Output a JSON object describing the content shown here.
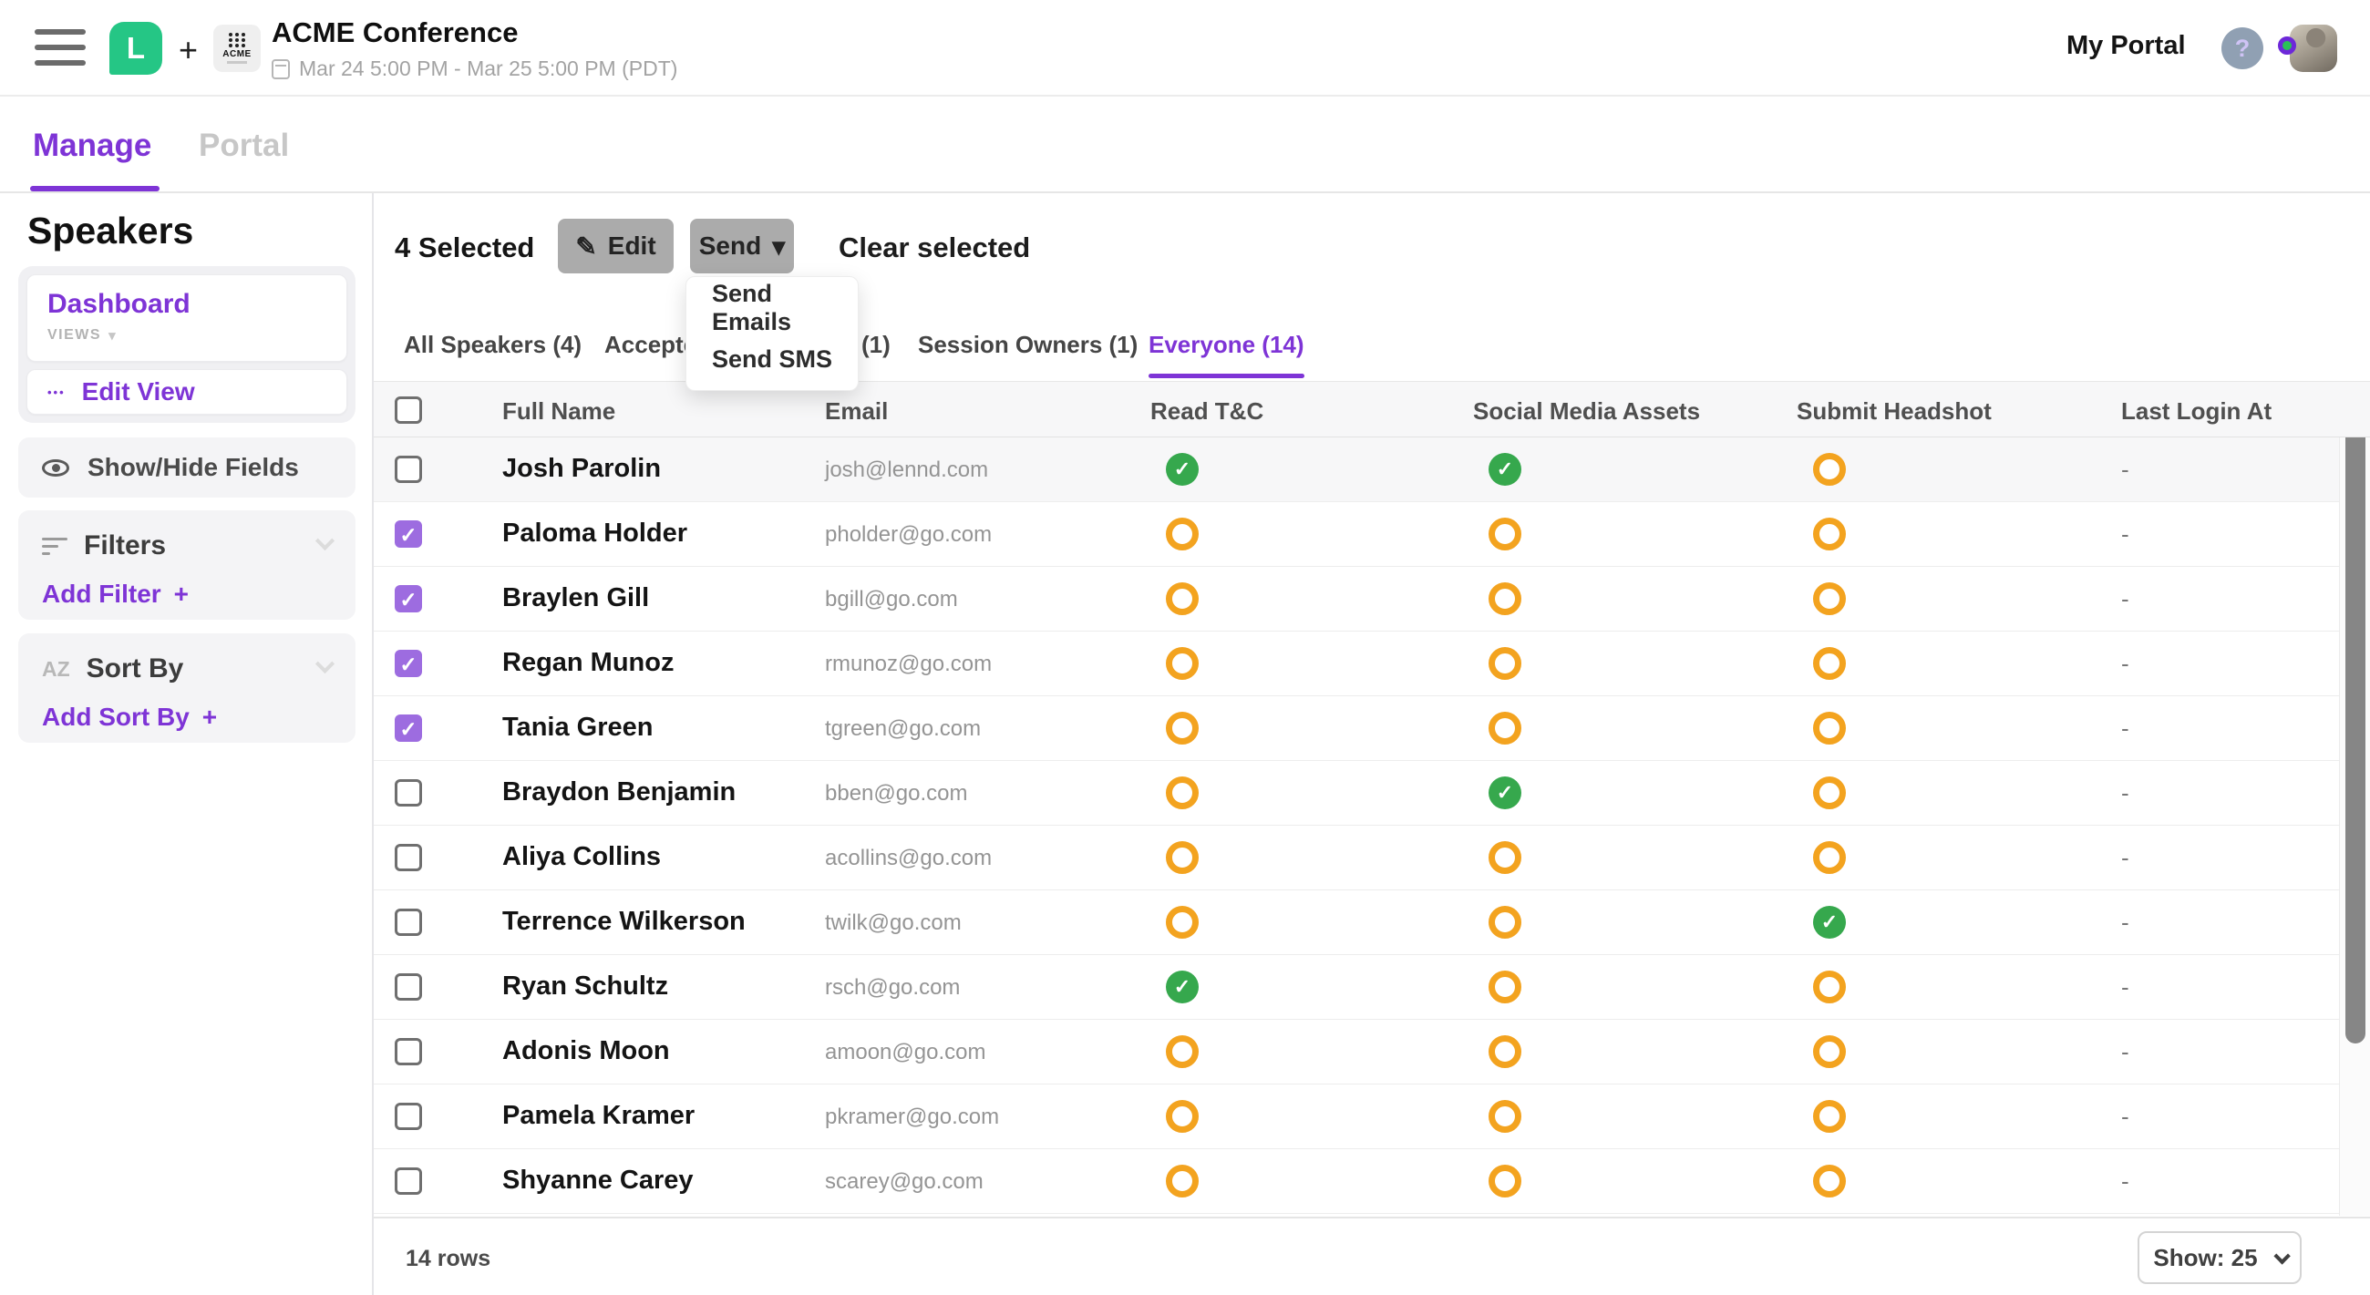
{
  "colors": {
    "accent_purple": "#7E34D6",
    "checkbox_purple": "#9D6CE0",
    "brand_green": "#25C685",
    "status_done_green": "#36A84D",
    "status_pending_orange": "#F3A31F",
    "button_gray": "#ABABAB"
  },
  "top_bar": {
    "logo_letter": "L",
    "plus": "+",
    "event_logo_text": "ACME",
    "event_title": "ACME Conference",
    "event_dates": "Mar 24 5:00 PM - Mar 25 5:00 PM (PDT)",
    "my_portal": "My Portal",
    "help": "?"
  },
  "primary_tabs": {
    "manage": "Manage",
    "portal": "Portal"
  },
  "sidebar": {
    "title": "Speakers",
    "view_name": "Dashboard",
    "views_label": "VIEWS",
    "edit_view": "Edit View",
    "ellipsis": "•••",
    "show_hide": "Show/Hide Fields",
    "filters_title": "Filters",
    "add_filter": "Add Filter",
    "sort_title": "Sort By",
    "add_sort": "Add Sort By",
    "az": "AZ",
    "plus": "+"
  },
  "toolbar": {
    "selected_count": "4 Selected",
    "edit": "Edit",
    "send": "Send",
    "clear": "Clear selected"
  },
  "send_menu": {
    "items": [
      "Send Emails",
      "Send SMS"
    ]
  },
  "view_tabs": [
    {
      "label": "All Speakers (4)",
      "active": false
    },
    {
      "label": "Accepte",
      "active": false
    },
    {
      "label": "(1)",
      "active": false
    },
    {
      "label": "Session Owners (1)",
      "active": false
    },
    {
      "label": "Everyone (14)",
      "active": true
    }
  ],
  "table": {
    "columns": [
      "Full Name",
      "Email",
      "Read T&C",
      "Social Media Assets",
      "Submit Headshot",
      "Last Login At"
    ],
    "rows": [
      {
        "name": "Josh Parolin",
        "email": "josh@lennd.com",
        "checked": false,
        "highlighted": true,
        "read_tc": "done",
        "social_media": "done",
        "headshot": "pending",
        "last_login": "-"
      },
      {
        "name": "Paloma Holder",
        "email": "pholder@go.com",
        "checked": true,
        "highlighted": false,
        "read_tc": "pending",
        "social_media": "pending",
        "headshot": "pending",
        "last_login": "-"
      },
      {
        "name": "Braylen Gill",
        "email": "bgill@go.com",
        "checked": true,
        "highlighted": false,
        "read_tc": "pending",
        "social_media": "pending",
        "headshot": "pending",
        "last_login": "-"
      },
      {
        "name": "Regan Munoz",
        "email": "rmunoz@go.com",
        "checked": true,
        "highlighted": false,
        "read_tc": "pending",
        "social_media": "pending",
        "headshot": "pending",
        "last_login": "-"
      },
      {
        "name": "Tania Green",
        "email": "tgreen@go.com",
        "checked": true,
        "highlighted": false,
        "read_tc": "pending",
        "social_media": "pending",
        "headshot": "pending",
        "last_login": "-"
      },
      {
        "name": "Braydon Benjamin",
        "email": "bben@go.com",
        "checked": false,
        "highlighted": false,
        "read_tc": "pending",
        "social_media": "done",
        "headshot": "pending",
        "last_login": "-"
      },
      {
        "name": "Aliya Collins",
        "email": "acollins@go.com",
        "checked": false,
        "highlighted": false,
        "read_tc": "pending",
        "social_media": "pending",
        "headshot": "pending",
        "last_login": "-"
      },
      {
        "name": "Terrence Wilkerson",
        "email": "twilk@go.com",
        "checked": false,
        "highlighted": false,
        "read_tc": "pending",
        "social_media": "pending",
        "headshot": "done",
        "last_login": "-"
      },
      {
        "name": "Ryan Schultz",
        "email": "rsch@go.com",
        "checked": false,
        "highlighted": false,
        "read_tc": "done",
        "social_media": "pending",
        "headshot": "pending",
        "last_login": "-"
      },
      {
        "name": "Adonis Moon",
        "email": "amoon@go.com",
        "checked": false,
        "highlighted": false,
        "read_tc": "pending",
        "social_media": "pending",
        "headshot": "pending",
        "last_login": "-"
      },
      {
        "name": "Pamela Kramer",
        "email": "pkramer@go.com",
        "checked": false,
        "highlighted": false,
        "read_tc": "pending",
        "social_media": "pending",
        "headshot": "pending",
        "last_login": "-"
      },
      {
        "name": "Shyanne Carey",
        "email": "scarey@go.com",
        "checked": false,
        "highlighted": false,
        "read_tc": "pending",
        "social_media": "pending",
        "headshot": "pending",
        "last_login": "-"
      }
    ]
  },
  "footer": {
    "row_count": "14 rows",
    "page_size": "Show: 25"
  }
}
